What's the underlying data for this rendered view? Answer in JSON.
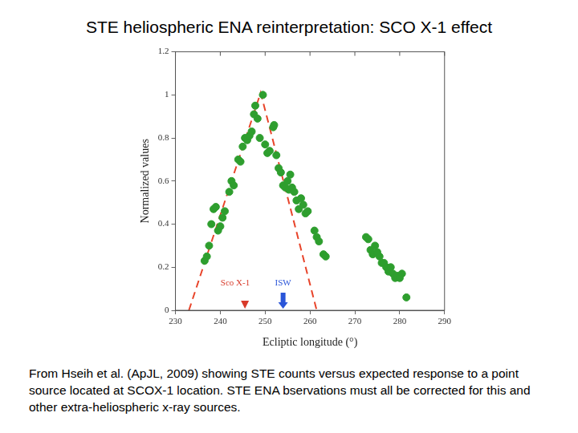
{
  "chart_data": {
    "type": "scatter",
    "title": "STE heliospheric ENA reinterpretation: SCO X-1 effect",
    "caption": "From Hseih et al. (ApJL, 2009) showing STE counts versus expected response to a point source located at SCOX-1 location.  STE ENA bservations must all be corrected for this and other extra-heliospheric x-ray sources.",
    "x_label": "Ecliptic longitude (°)",
    "y_label": "Normalized values",
    "xlim": [
      230,
      290
    ],
    "xticks": [
      230,
      240,
      250,
      260,
      270,
      280,
      290
    ],
    "ylim": [
      0,
      1.2
    ],
    "yticks": [
      0,
      0.2,
      0.4,
      0.6,
      0.8,
      1,
      1.2
    ],
    "grid": false,
    "series": [
      {
        "type": "scatter",
        "color": "#2e9e2e",
        "marker": "circle",
        "x": [
          236.5,
          237,
          237.5,
          238,
          238.5,
          239,
          239.5,
          240,
          240.5,
          241,
          242,
          242.5,
          243,
          244,
          244.5,
          245,
          245.5,
          246,
          246.5,
          247,
          247.5,
          247.8,
          248.3,
          248.8,
          249.5,
          250,
          250.5,
          251,
          251.8,
          252,
          252.5,
          253,
          253.5,
          254,
          254.5,
          255,
          255.3,
          255.6,
          256,
          256.5,
          257,
          257.5,
          258,
          258.5,
          259,
          259.5,
          261,
          261.5,
          262,
          263,
          263.5,
          272.5,
          273,
          273.5,
          274,
          274.5,
          275,
          275.5,
          276,
          276.5,
          277,
          277.5,
          278,
          278.5,
          279,
          279.5,
          280,
          280.5,
          281.5
        ],
        "values": [
          0.23,
          0.25,
          0.3,
          0.4,
          0.47,
          0.48,
          0.37,
          0.39,
          0.43,
          0.46,
          0.55,
          0.6,
          0.58,
          0.7,
          0.69,
          0.76,
          0.8,
          0.79,
          0.81,
          0.83,
          0.91,
          0.95,
          0.89,
          0.8,
          1.0,
          0.77,
          0.73,
          0.74,
          0.85,
          0.86,
          0.72,
          0.66,
          0.64,
          0.58,
          0.57,
          0.6,
          0.56,
          0.63,
          0.57,
          0.55,
          0.51,
          0.47,
          0.52,
          0.49,
          0.45,
          0.46,
          0.37,
          0.34,
          0.32,
          0.26,
          0.25,
          0.34,
          0.33,
          0.28,
          0.26,
          0.3,
          0.27,
          0.25,
          0.22,
          0.22,
          0.2,
          0.18,
          0.2,
          0.17,
          0.15,
          0.16,
          0.15,
          0.17,
          0.06
        ]
      },
      {
        "type": "line",
        "color": "#e8442a",
        "line_style": "dashed",
        "x": [
          233,
          249,
          261.5
        ],
        "values": [
          0,
          1.01,
          0
        ]
      }
    ],
    "annotations": [
      {
        "text": "Sco X-1",
        "x": 245.5,
        "color": "#d83a2a",
        "marker": "triangle"
      },
      {
        "text": "ISW",
        "x": 254,
        "color": "#2a55d8",
        "marker": "arrow"
      }
    ]
  }
}
